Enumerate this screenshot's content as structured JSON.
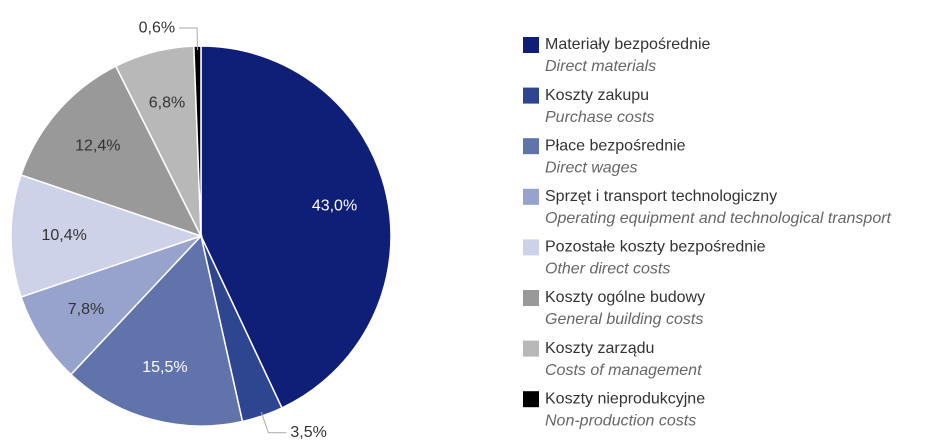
{
  "chart_data": {
    "type": "pie",
    "categories": [
      "Materiały bezpośrednie",
      "Koszty zakupu",
      "Płace bezpośrednie",
      "Sprzęt i transport technologiczny",
      "Pozostałe koszty bezpośrednie",
      "Koszty ogólne budowy",
      "Koszty zarządu",
      "Koszty nieprodukcyjne"
    ],
    "categories_en": [
      "Direct materials",
      "Purchase costs",
      "Direct wages",
      "Operating equipment and technological transport",
      "Other direct costs",
      "General building costs",
      "Costs of management",
      "Non-production costs"
    ],
    "values": [
      43.0,
      3.5,
      15.5,
      7.8,
      10.4,
      12.4,
      6.8,
      0.6
    ],
    "value_labels": [
      "43,0%",
      "3,5%",
      "15,5%",
      "7,8%",
      "10,4%",
      "12,4%",
      "6,8%",
      "0,6%"
    ],
    "colors": [
      "#0f1f78",
      "#2e4590",
      "#6173ab",
      "#97a3cc",
      "#cdd2e8",
      "#999999",
      "#b8b8b8",
      "#000000"
    ],
    "legend": "right"
  }
}
